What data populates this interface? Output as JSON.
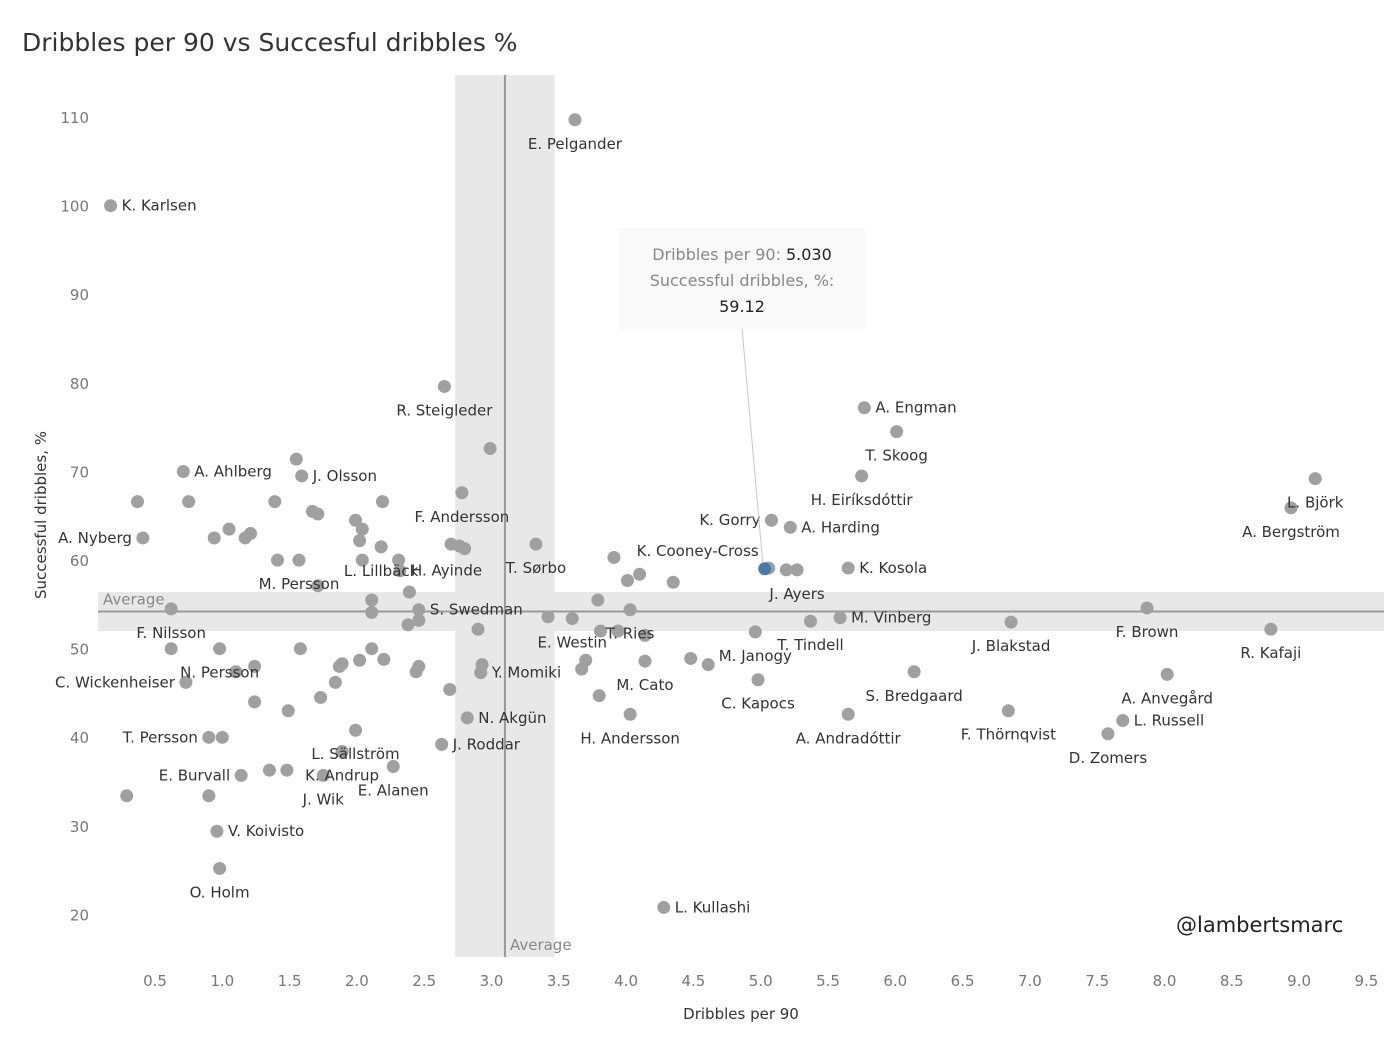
{
  "chart_data": {
    "type": "scatter",
    "title": "Dribbles per 90 vs Succesful dribbles %",
    "xlabel": "Dribbles per 90",
    "ylabel": "Successful dribbles, %",
    "xlim": [
      0.1,
      9.6
    ],
    "ylim": [
      15.5,
      115
    ],
    "xticks": [
      "0.5",
      "1.0",
      "1.5",
      "2.0",
      "2.5",
      "3.0",
      "3.5",
      "4.0",
      "4.5",
      "5.0",
      "5.5",
      "6.0",
      "6.5",
      "7.0",
      "7.5",
      "8.0",
      "8.5",
      "9.0",
      "9.5"
    ],
    "yticks": [
      "20",
      "30",
      "40",
      "50",
      "60",
      "70",
      "80",
      "90",
      "100",
      "110"
    ],
    "grid": false,
    "reference_lines": {
      "x_average": {
        "value": 3.1,
        "band": [
          2.73,
          3.47
        ],
        "label": "Average"
      },
      "y_average": {
        "value": 54.3,
        "band": [
          52.1,
          56.5
        ],
        "label": "Average"
      }
    },
    "colors": {
      "point": "#a0a0a0",
      "highlight": "#4e79a7",
      "band": "#e8e8e8",
      "avg_line": "#9a9a9a"
    },
    "highlight": {
      "player": "K. Cooney-Cross",
      "x": 5.03,
      "y": 59.12
    },
    "tooltip": {
      "line1_label": "Dribbles per 90:",
      "line1_value": "5.030",
      "line2_label": "Successful dribbles, %:",
      "line2_value": "59.12"
    },
    "credit": "@lambertsmarc",
    "points": [
      {
        "x": 0.17,
        "y": 100.1,
        "label": "K. Karlsen"
      },
      {
        "x": 3.62,
        "y": 109.8,
        "label": "E. Pelgander"
      },
      {
        "x": 2.65,
        "y": 79.7,
        "label": "R. Steigleder"
      },
      {
        "x": 2.99,
        "y": 72.7
      },
      {
        "x": 2.78,
        "y": 67.7,
        "label": "F. Andersson"
      },
      {
        "x": 5.77,
        "y": 77.3,
        "label": "A. Engman"
      },
      {
        "x": 6.01,
        "y": 74.6,
        "label": "T. Skoog"
      },
      {
        "x": 5.75,
        "y": 69.6,
        "label": "H. Eiríksdóttir"
      },
      {
        "x": 9.12,
        "y": 69.3,
        "label": "L. Björk"
      },
      {
        "x": 8.94,
        "y": 66.0,
        "label": "A. Bergström"
      },
      {
        "x": 5.08,
        "y": 64.6,
        "label": "K. Gorry"
      },
      {
        "x": 5.22,
        "y": 63.8,
        "label": "A. Harding"
      },
      {
        "x": 5.03,
        "y": 59.12,
        "label": "K. Cooney-Cross",
        "highlight": true
      },
      {
        "x": 5.06,
        "y": 59.2
      },
      {
        "x": 5.19,
        "y": 59.0
      },
      {
        "x": 5.27,
        "y": 59.0,
        "label": "J. Ayers"
      },
      {
        "x": 5.65,
        "y": 59.2,
        "label": "K. Kosola"
      },
      {
        "x": 5.37,
        "y": 53.2,
        "label": "T. Tindell"
      },
      {
        "x": 5.59,
        "y": 53.6,
        "label": "M. Vinberg"
      },
      {
        "x": 4.96,
        "y": 52.0,
        "label": "M. Janogy"
      },
      {
        "x": 4.98,
        "y": 46.6,
        "label": "C. Kapocs"
      },
      {
        "x": 5.65,
        "y": 42.7,
        "label": "A. Andradóttir"
      },
      {
        "x": 6.14,
        "y": 47.5,
        "label": "S. Bredgaard"
      },
      {
        "x": 6.84,
        "y": 43.1,
        "label": "F. Thörnqvist"
      },
      {
        "x": 6.86,
        "y": 53.1,
        "label": "J. Blakstad"
      },
      {
        "x": 7.87,
        "y": 54.7,
        "label": "F. Brown"
      },
      {
        "x": 8.79,
        "y": 52.3,
        "label": "R. Kafaji"
      },
      {
        "x": 8.02,
        "y": 47.2,
        "label": "A. Anvegård"
      },
      {
        "x": 7.69,
        "y": 42.0,
        "label": "L. Russell"
      },
      {
        "x": 7.58,
        "y": 40.5,
        "label": "D. Zomers"
      },
      {
        "x": 4.28,
        "y": 20.9,
        "label": "L. Kullashi"
      },
      {
        "x": 0.37,
        "y": 66.7
      },
      {
        "x": 0.71,
        "y": 70.1,
        "label": "A. Ahlberg"
      },
      {
        "x": 0.75,
        "y": 66.7
      },
      {
        "x": 0.41,
        "y": 62.6,
        "label": "A. Nyberg"
      },
      {
        "x": 0.94,
        "y": 62.6
      },
      {
        "x": 1.05,
        "y": 63.6
      },
      {
        "x": 1.17,
        "y": 62.6
      },
      {
        "x": 1.21,
        "y": 63.1
      },
      {
        "x": 1.39,
        "y": 66.7
      },
      {
        "x": 1.55,
        "y": 71.5
      },
      {
        "x": 1.59,
        "y": 69.6,
        "label": "J. Olsson"
      },
      {
        "x": 1.67,
        "y": 65.6
      },
      {
        "x": 1.71,
        "y": 65.3
      },
      {
        "x": 1.41,
        "y": 60.1
      },
      {
        "x": 1.57,
        "y": 60.1,
        "label": "M. Persson"
      },
      {
        "x": 1.71,
        "y": 57.2
      },
      {
        "x": 1.99,
        "y": 64.6
      },
      {
        "x": 2.04,
        "y": 63.6
      },
      {
        "x": 2.02,
        "y": 62.3
      },
      {
        "x": 2.04,
        "y": 60.1
      },
      {
        "x": 2.19,
        "y": 66.7
      },
      {
        "x": 2.18,
        "y": 61.6,
        "label": "L. Lillbäck"
      },
      {
        "x": 2.31,
        "y": 60.1
      },
      {
        "x": 2.32,
        "y": 58.9,
        "label": "H. Ayinde"
      },
      {
        "x": 2.39,
        "y": 56.5
      },
      {
        "x": 2.11,
        "y": 55.6
      },
      {
        "x": 2.11,
        "y": 54.2
      },
      {
        "x": 2.46,
        "y": 54.5,
        "label": "S. Swedman"
      },
      {
        "x": 2.46,
        "y": 53.3
      },
      {
        "x": 2.38,
        "y": 52.8
      },
      {
        "x": 2.7,
        "y": 61.9
      },
      {
        "x": 2.76,
        "y": 61.7
      },
      {
        "x": 2.8,
        "y": 61.4
      },
      {
        "x": 3.33,
        "y": 61.9,
        "label": "T. Sørbo"
      },
      {
        "x": 3.42,
        "y": 53.7
      },
      {
        "x": 3.6,
        "y": 53.5,
        "label": "E. Westin"
      },
      {
        "x": 2.9,
        "y": 52.3
      },
      {
        "x": 0.62,
        "y": 54.6,
        "label": "F. Nilsson"
      },
      {
        "x": 0.62,
        "y": 50.1
      },
      {
        "x": 0.98,
        "y": 50.1,
        "label": "N. Persson"
      },
      {
        "x": 1.58,
        "y": 50.1
      },
      {
        "x": 0.73,
        "y": 46.3,
        "label": "C. Wickenheiser"
      },
      {
        "x": 1.1,
        "y": 47.5
      },
      {
        "x": 1.24,
        "y": 48.1
      },
      {
        "x": 1.24,
        "y": 44.1
      },
      {
        "x": 1.49,
        "y": 43.1
      },
      {
        "x": 1.73,
        "y": 44.6
      },
      {
        "x": 1.84,
        "y": 46.3
      },
      {
        "x": 1.87,
        "y": 48.1
      },
      {
        "x": 1.89,
        "y": 48.4
      },
      {
        "x": 2.02,
        "y": 48.8
      },
      {
        "x": 2.11,
        "y": 50.1
      },
      {
        "x": 2.2,
        "y": 48.9
      },
      {
        "x": 2.44,
        "y": 47.5
      },
      {
        "x": 2.46,
        "y": 48.1
      },
      {
        "x": 2.69,
        "y": 45.5
      },
      {
        "x": 2.82,
        "y": 42.3,
        "label": "N. Akgün"
      },
      {
        "x": 2.93,
        "y": 48.3
      },
      {
        "x": 2.92,
        "y": 47.4,
        "label": "Y. Momiki"
      },
      {
        "x": 0.9,
        "y": 40.1,
        "label": "T. Persson"
      },
      {
        "x": 1.0,
        "y": 40.1
      },
      {
        "x": 1.99,
        "y": 40.9,
        "label": "L. Sällström"
      },
      {
        "x": 1.89,
        "y": 38.5,
        "label": "K. Andrup"
      },
      {
        "x": 2.63,
        "y": 39.3,
        "label": "J. Roddar"
      },
      {
        "x": 1.14,
        "y": 35.8,
        "label": "E. Burvall"
      },
      {
        "x": 1.35,
        "y": 36.4
      },
      {
        "x": 1.48,
        "y": 36.4
      },
      {
        "x": 1.75,
        "y": 35.8,
        "label": "J. Wik"
      },
      {
        "x": 2.27,
        "y": 36.8,
        "label": "E. Alanen"
      },
      {
        "x": 0.29,
        "y": 33.5
      },
      {
        "x": 0.9,
        "y": 33.5
      },
      {
        "x": 0.96,
        "y": 29.5,
        "label": "V. Koivisto"
      },
      {
        "x": 0.98,
        "y": 25.3,
        "label": "O. Holm"
      },
      {
        "x": 3.79,
        "y": 55.6
      },
      {
        "x": 3.91,
        "y": 60.4
      },
      {
        "x": 4.01,
        "y": 57.8
      },
      {
        "x": 4.1,
        "y": 58.5
      },
      {
        "x": 4.35,
        "y": 57.6
      },
      {
        "x": 4.03,
        "y": 54.5,
        "label": "T. Ries"
      },
      {
        "x": 3.81,
        "y": 52.1
      },
      {
        "x": 3.94,
        "y": 52.1
      },
      {
        "x": 4.14,
        "y": 51.6
      },
      {
        "x": 3.7,
        "y": 48.8
      },
      {
        "x": 3.67,
        "y": 47.8
      },
      {
        "x": 4.14,
        "y": 48.7,
        "label": "M. Cato"
      },
      {
        "x": 4.48,
        "y": 49.0
      },
      {
        "x": 4.61,
        "y": 48.3
      },
      {
        "x": 3.8,
        "y": 44.8
      },
      {
        "x": 4.03,
        "y": 42.7,
        "label": "H. Andersson"
      }
    ]
  }
}
